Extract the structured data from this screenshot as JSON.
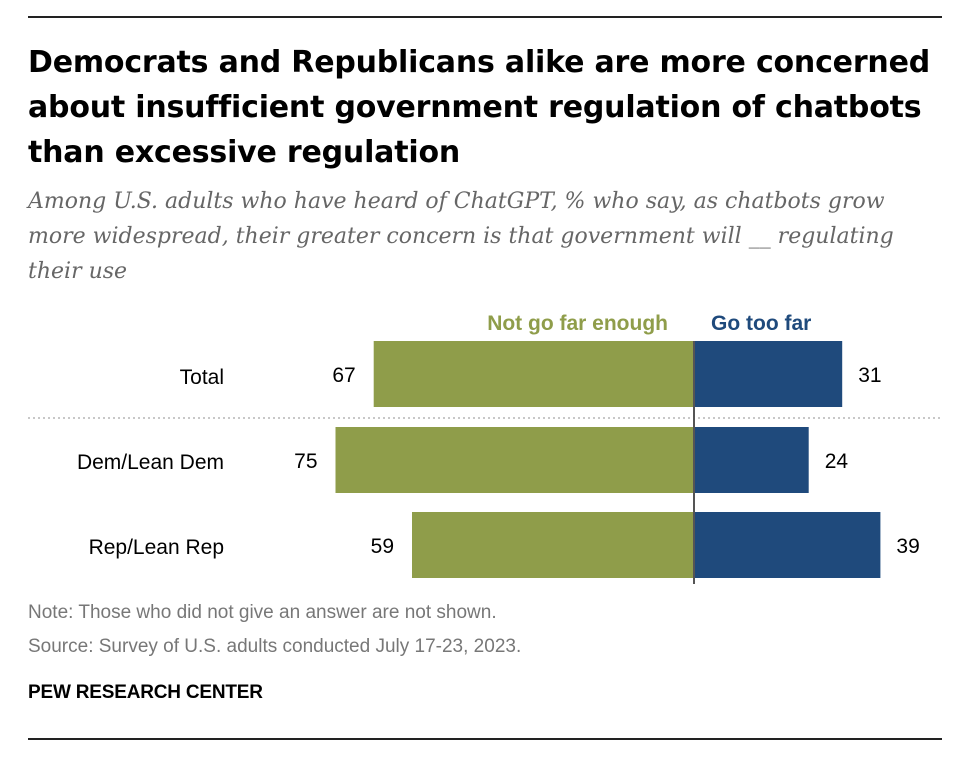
{
  "colors": {
    "not_far_enough": "#8f9d4a",
    "too_far": "#1f4a7c",
    "legend_not_far_enough_text": "#8f9d4a",
    "legend_too_far_text": "#1f4a7c",
    "axis": "#555555",
    "separator": "#b5b5b5"
  },
  "title": "Democrats and Republicans alike are more concerned about insufficient government regulation of chatbots than excessive regulation",
  "subtitle": "Among U.S. adults who have heard of ChatGPT, % who say, as chatbots grow more widespread, their greater concern is that government will __ regulating their use",
  "chart_data": {
    "type": "bar",
    "orientation": "horizontal-diverging",
    "categories": [
      "Total",
      "Dem/Lean Dem",
      "Rep/Lean Rep"
    ],
    "series": [
      {
        "name": "Not go far enough",
        "values": [
          67,
          75,
          59
        ],
        "direction": "left"
      },
      {
        "name": "Go too far",
        "values": [
          31,
          24,
          39
        ],
        "direction": "right"
      }
    ],
    "value_labels": {
      "not_far_enough": [
        "67",
        "75",
        "59"
      ],
      "too_far": [
        "31",
        "24",
        "39"
      ]
    },
    "separator_after_category": "Total",
    "legend": [
      "Not go far enough",
      "Go too far"
    ],
    "legend_position": "top, above bars",
    "grid": false
  },
  "note": "Note: Those who did not give an answer are not shown.",
  "source": "Source: Survey of U.S. adults conducted July 17-23, 2023.",
  "brand": "PEW RESEARCH CENTER"
}
